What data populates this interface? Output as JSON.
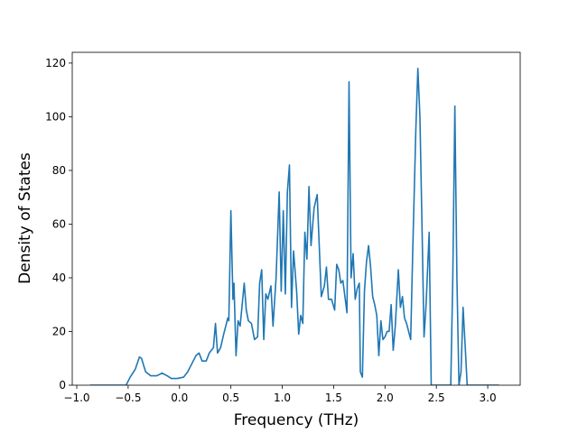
{
  "chart_data": {
    "type": "line",
    "xlabel": "Frequency (THz)",
    "ylabel": "Density of States",
    "color": "#1f77b4",
    "x": [
      -0.87,
      -0.52,
      -0.48,
      -0.43,
      -0.39,
      -0.37,
      -0.33,
      -0.28,
      -0.22,
      -0.17,
      -0.12,
      -0.08,
      -0.02,
      0.04,
      0.08,
      0.12,
      0.16,
      0.19,
      0.22,
      0.26,
      0.29,
      0.33,
      0.35,
      0.37,
      0.4,
      0.43,
      0.45,
      0.47,
      0.48,
      0.5,
      0.52,
      0.53,
      0.55,
      0.57,
      0.59,
      0.61,
      0.63,
      0.65,
      0.67,
      0.7,
      0.73,
      0.76,
      0.78,
      0.8,
      0.82,
      0.84,
      0.86,
      0.89,
      0.91,
      0.94,
      0.97,
      0.99,
      1.01,
      1.03,
      1.05,
      1.07,
      1.09,
      1.11,
      1.14,
      1.16,
      1.18,
      1.2,
      1.22,
      1.24,
      1.26,
      1.28,
      1.31,
      1.34,
      1.36,
      1.38,
      1.41,
      1.43,
      1.45,
      1.48,
      1.51,
      1.53,
      1.55,
      1.57,
      1.59,
      1.61,
      1.63,
      1.65,
      1.67,
      1.69,
      1.71,
      1.73,
      1.75,
      1.76,
      1.78,
      1.8,
      1.82,
      1.84,
      1.86,
      1.88,
      1.9,
      1.92,
      1.94,
      1.96,
      1.98,
      2.0,
      2.02,
      2.04,
      2.06,
      2.08,
      2.1,
      2.13,
      2.15,
      2.17,
      2.19,
      2.21,
      2.23,
      2.25,
      2.27,
      2.3,
      2.32,
      2.34,
      2.36,
      2.38,
      2.4,
      2.43,
      2.45,
      2.64,
      2.66,
      2.68,
      2.7,
      2.72,
      2.74,
      2.76,
      2.78,
      2.8,
      3.11
    ],
    "values": [
      0,
      0,
      3,
      6,
      10.5,
      10,
      5,
      3.5,
      3.5,
      4.5,
      3.5,
      2.5,
      2.5,
      3,
      5,
      8,
      11,
      12,
      9,
      9,
      12,
      14,
      23,
      12,
      14,
      19,
      22,
      25,
      24,
      65,
      32,
      38,
      11,
      24,
      22,
      30,
      38,
      28,
      24,
      23,
      17,
      18,
      38,
      43,
      17,
      34,
      32,
      37,
      22,
      40,
      72,
      35,
      65,
      34,
      72,
      82,
      29,
      50,
      35,
      19,
      26,
      23,
      57,
      47,
      74,
      52,
      66,
      71,
      52,
      33,
      37,
      44,
      32,
      32,
      28,
      45,
      43,
      38,
      39,
      33,
      27,
      113,
      40,
      49,
      32,
      36,
      38,
      5,
      3,
      35,
      46,
      52,
      44,
      33,
      30,
      26,
      11,
      24,
      17,
      18,
      20,
      20,
      30,
      13,
      22,
      43,
      29,
      33,
      25,
      23,
      20,
      17,
      50,
      95,
      118,
      100,
      60,
      18,
      30,
      57,
      0,
      0,
      40,
      104,
      40,
      0,
      5,
      29,
      15,
      0,
      0
    ],
    "xlim": [
      -1.044,
      3.316
    ],
    "ylim": [
      0,
      124
    ],
    "xticks": [
      {
        "value": -1,
        "label": "−1.0"
      },
      {
        "value": -0.5,
        "label": "−0.5"
      },
      {
        "value": 0,
        "label": "0.0"
      },
      0.5,
      {
        "value": 1,
        "label": "1.0"
      },
      1.5,
      {
        "value": 2,
        "label": "2.0"
      },
      2.5,
      {
        "value": 3,
        "label": "3.0"
      }
    ],
    "yticks": [
      0,
      20,
      40,
      60,
      80,
      100,
      120
    ]
  }
}
